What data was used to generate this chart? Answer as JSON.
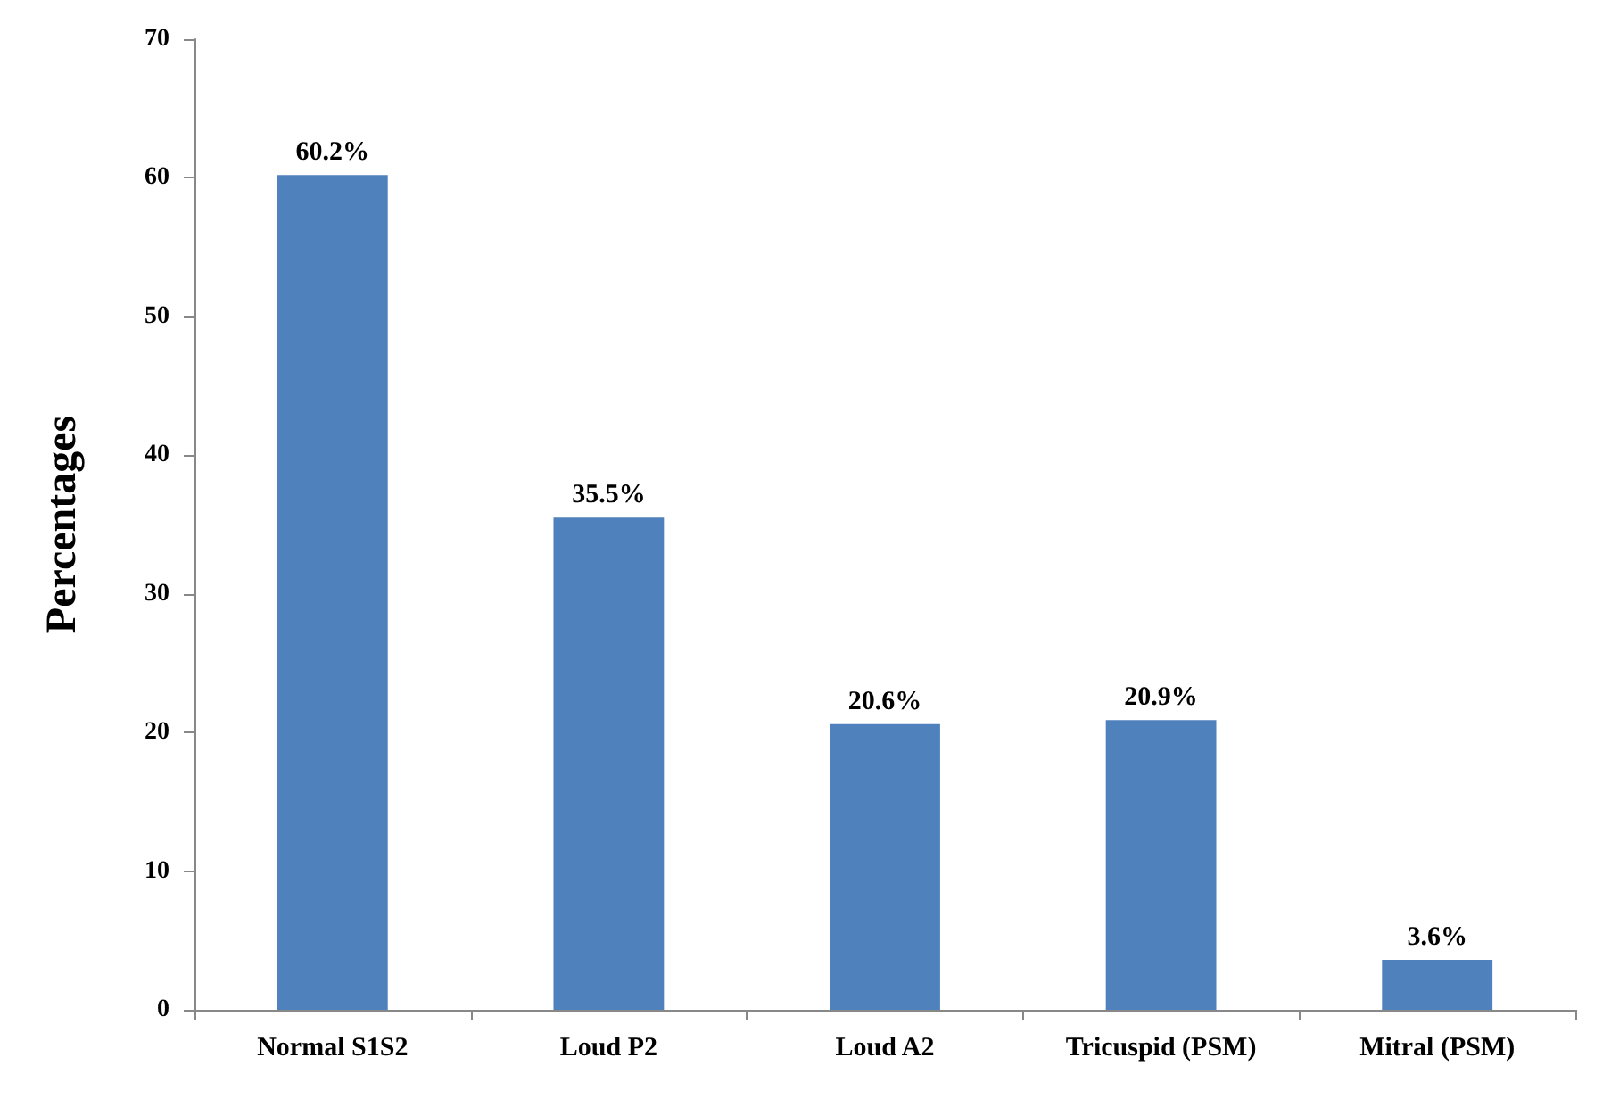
{
  "chart_data": {
    "type": "bar",
    "ylabel": "Percentages",
    "categories": [
      "Normal S1S2",
      "Loud P2",
      "Loud A2",
      "Tricuspid (PSM)",
      "Mitral (PSM)"
    ],
    "values": [
      60.2,
      35.5,
      20.6,
      20.9,
      3.6
    ],
    "value_labels": [
      "60.2%",
      "35.5%",
      "20.6%",
      "20.9%",
      "3.6%"
    ],
    "color": "#4f81bd",
    "ylim": [
      0,
      70
    ],
    "yticks": [
      0,
      10,
      20,
      30,
      40,
      50,
      60,
      70
    ],
    "grid": false
  }
}
